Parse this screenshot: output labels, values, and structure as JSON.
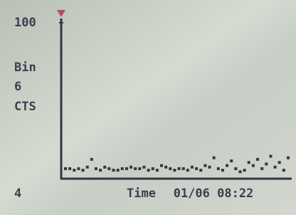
{
  "chart_data": {
    "type": "dot",
    "ytick_side_labels": [
      "Bin",
      "6",
      "CTS"
    ],
    "corner_label": "4",
    "xlabel": "Time",
    "timestamp": "01/06 08:22",
    "values": [
      6,
      6,
      5,
      6,
      5,
      7,
      12,
      6,
      5,
      7,
      6,
      5,
      5,
      6,
      6,
      7,
      6,
      6,
      7,
      5,
      6,
      5,
      8,
      7,
      6,
      5,
      6,
      6,
      5,
      7,
      6,
      5,
      8,
      7,
      13,
      6,
      5,
      8,
      11,
      6,
      4,
      5,
      10,
      8,
      12,
      6,
      9,
      14,
      7,
      10,
      5,
      13
    ],
    "color": "#3a3340",
    "ylim": [
      0,
      100
    ],
    "yticks": [
      100
    ]
  }
}
